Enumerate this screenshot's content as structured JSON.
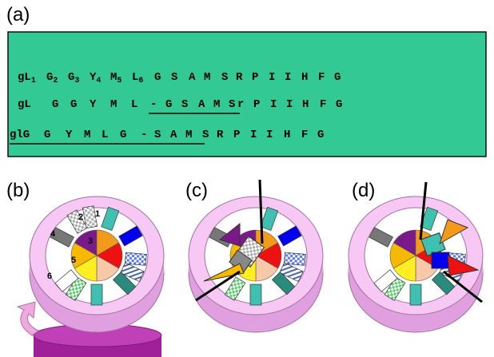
{
  "panels": {
    "a": {
      "label": "(a)",
      "rows": [
        [
          {
            "text": "gL",
            "sub": "1"
          },
          {
            "text": "G",
            "sub": "2"
          },
          {
            "text": "G",
            "sub": "3"
          },
          {
            "text": "Y",
            "sub": "4"
          },
          {
            "text": "M",
            "sub": "5"
          },
          {
            "text": "L",
            "sub": "6"
          },
          {
            "text": "G"
          },
          {
            "text": "S"
          },
          {
            "text": "A"
          },
          {
            "text": "M"
          },
          {
            "text": "S"
          },
          {
            "text": "R"
          },
          {
            "text": "P"
          },
          {
            "text": "I"
          },
          {
            "text": "I"
          },
          {
            "text": "H"
          },
          {
            "text": "F"
          },
          {
            "text": "G"
          }
        ],
        [
          {
            "text": "gL"
          },
          {
            "text": "G"
          },
          {
            "text": "G"
          },
          {
            "text": "Y"
          },
          {
            "text": "M"
          },
          {
            "text": "L"
          },
          {
            "text": "-"
          },
          {
            "text": "G"
          },
          {
            "text": "S"
          },
          {
            "text": "A"
          },
          {
            "text": "M"
          },
          {
            "text": "S"
          },
          {
            "text": "r"
          },
          {
            "text": "P"
          },
          {
            "text": "I"
          },
          {
            "text": "I"
          },
          {
            "text": "H"
          },
          {
            "text": "F"
          },
          {
            "text": "G"
          }
        ],
        [
          {
            "text": "glG"
          },
          {
            "text": "G"
          },
          {
            "text": "Y"
          },
          {
            "text": "M"
          },
          {
            "text": "L"
          },
          {
            "text": "G"
          },
          {
            "text": "-"
          },
          {
            "text": "S"
          },
          {
            "text": "A"
          },
          {
            "text": "M"
          },
          {
            "text": "S"
          },
          {
            "text": "R"
          },
          {
            "text": "P"
          },
          {
            "text": "I"
          },
          {
            "text": "I"
          },
          {
            "text": "H"
          },
          {
            "text": "F"
          },
          {
            "text": "G"
          }
        ]
      ]
    },
    "b": {
      "label": "(b)",
      "numbers": [
        "1",
        "2",
        "3",
        "4",
        "5",
        "6"
      ]
    },
    "c": {
      "label": "(c)"
    },
    "d": {
      "label": "(d)"
    }
  }
}
